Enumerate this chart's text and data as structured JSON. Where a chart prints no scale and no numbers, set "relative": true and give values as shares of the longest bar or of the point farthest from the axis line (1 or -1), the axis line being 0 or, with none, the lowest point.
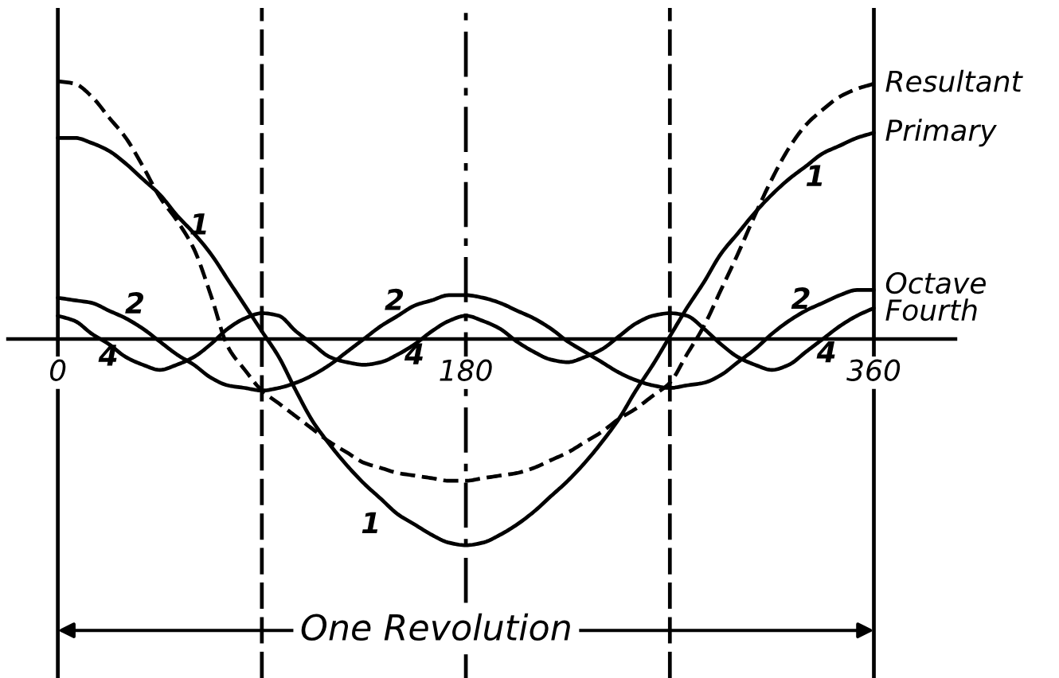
{
  "chart_data": {
    "type": "line",
    "relative": true,
    "tick_labels": "x",
    "x": [
      0,
      7.5,
      15,
      22.5,
      30,
      37.5,
      45,
      52.5,
      60,
      67.5,
      75,
      82.5,
      90,
      97.5,
      105,
      112.5,
      120,
      127.5,
      135,
      142.5,
      150,
      157.5,
      165,
      172.5,
      180,
      187.5,
      195,
      202.5,
      210,
      217.5,
      225,
      232.5,
      240,
      247.5,
      255,
      262.5,
      270,
      277.5,
      285,
      292.5,
      300,
      307.5,
      315,
      322.5,
      330,
      337.5,
      345,
      352.5,
      360
    ],
    "xlim": [
      -22,
      396
    ],
    "xticks": [
      0,
      180,
      360
    ],
    "series": [
      {
        "name": "Resultant",
        "color": "#000000",
        "line_style": "dashed",
        "values": [
          1.0,
          0.99,
          0.94,
          0.86,
          0.78,
          0.67,
          0.55,
          0.46,
          0.35,
          0.17,
          -0.03,
          -0.12,
          -0.2,
          -0.25,
          -0.3,
          -0.35,
          -0.4,
          -0.44,
          -0.48,
          -0.5,
          -0.52,
          -0.53,
          -0.54,
          -0.55,
          -0.55,
          -0.54,
          -0.53,
          -0.52,
          -0.5,
          -0.47,
          -0.44,
          -0.4,
          -0.36,
          -0.31,
          -0.27,
          -0.22,
          -0.17,
          -0.06,
          0.05,
          0.19,
          0.33,
          0.48,
          0.62,
          0.74,
          0.83,
          0.89,
          0.94,
          0.97,
          0.99
        ]
      },
      {
        "name": "Primary",
        "color": "#000000",
        "line_style": "solid",
        "values": [
          0.78,
          0.78,
          0.76,
          0.73,
          0.68,
          0.62,
          0.56,
          0.48,
          0.41,
          0.33,
          0.23,
          0.13,
          0.03,
          -0.07,
          -0.2,
          -0.32,
          -0.41,
          -0.49,
          -0.56,
          -0.62,
          -0.68,
          -0.72,
          -0.76,
          -0.79,
          -0.8,
          -0.79,
          -0.76,
          -0.72,
          -0.67,
          -0.61,
          -0.55,
          -0.48,
          -0.4,
          -0.31,
          -0.2,
          -0.1,
          0.01,
          0.12,
          0.22,
          0.33,
          0.41,
          0.49,
          0.56,
          0.62,
          0.67,
          0.72,
          0.75,
          0.78,
          0.8
        ]
      },
      {
        "name": "Octave",
        "color": "#000000",
        "line_style": "solid",
        "values": [
          0.16,
          0.15,
          0.14,
          0.11,
          0.08,
          0.04,
          -0.01,
          -0.06,
          -0.1,
          -0.15,
          -0.18,
          -0.19,
          -0.2,
          -0.19,
          -0.17,
          -0.14,
          -0.1,
          -0.05,
          0.0,
          0.05,
          0.09,
          0.13,
          0.15,
          0.17,
          0.17,
          0.16,
          0.14,
          0.11,
          0.08,
          0.04,
          -0.01,
          -0.05,
          -0.09,
          -0.13,
          -0.16,
          -0.18,
          -0.19,
          -0.18,
          -0.17,
          -0.14,
          -0.09,
          -0.04,
          0.02,
          0.07,
          0.11,
          0.14,
          0.17,
          0.19,
          0.19
        ]
      },
      {
        "name": "Fourth",
        "color": "#000000",
        "line_style": "solid",
        "values": [
          0.09,
          0.07,
          0.02,
          -0.02,
          -0.07,
          -0.1,
          -0.12,
          -0.1,
          -0.07,
          -0.02,
          0.04,
          0.08,
          0.1,
          0.09,
          0.03,
          -0.02,
          -0.07,
          -0.09,
          -0.1,
          -0.09,
          -0.06,
          -0.02,
          0.03,
          0.07,
          0.09,
          0.07,
          0.04,
          -0.01,
          -0.05,
          -0.08,
          -0.09,
          -0.07,
          -0.04,
          0.01,
          0.06,
          0.09,
          0.1,
          0.09,
          0.04,
          -0.02,
          -0.07,
          -0.1,
          -0.12,
          -0.1,
          -0.05,
          0.0,
          0.05,
          0.09,
          0.12
        ]
      }
    ],
    "ref_lines": [
      {
        "axis": "x",
        "value": 0,
        "color": "#000000",
        "line_style": "solid"
      },
      {
        "axis": "x",
        "value": 90,
        "color": "#000000",
        "line_style": "dashed"
      },
      {
        "axis": "x",
        "value": 180,
        "color": "#000000",
        "line_style": "dashdot"
      },
      {
        "axis": "x",
        "value": 270,
        "color": "#000000",
        "line_style": "dashed"
      },
      {
        "axis": "x",
        "value": 360,
        "color": "#000000",
        "line_style": "solid"
      }
    ],
    "annotations": [
      "1",
      "1",
      "1",
      "2",
      "2",
      "2",
      "4",
      "4",
      "4",
      "One Revolution"
    ]
  }
}
